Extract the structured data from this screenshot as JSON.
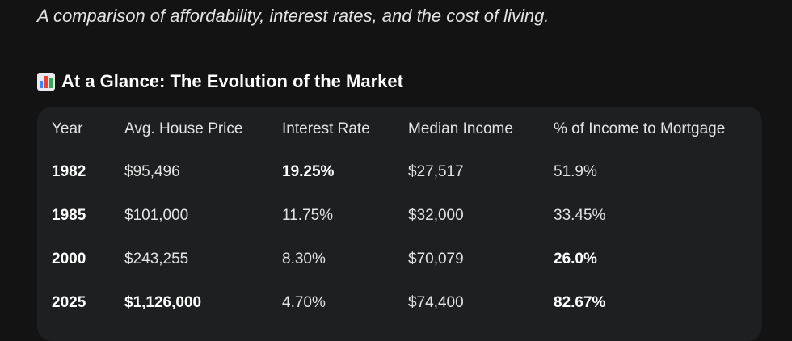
{
  "subtitle": "A comparison of affordability, interest rates, and the cost of living.",
  "heading": {
    "icon": "bar-chart-icon",
    "text": "At a Glance: The Evolution of the Market"
  },
  "table": {
    "headers": [
      "Year",
      "Avg. House Price",
      "Interest Rate",
      "Median Income",
      "% of Income to Mortgage"
    ],
    "rows": [
      [
        "1982",
        "$95,496",
        "19.25%",
        "$27,517",
        "51.9%"
      ],
      [
        "1985",
        "$101,000",
        "11.75%",
        "$32,000",
        "33.45%"
      ],
      [
        "2000",
        "$243,255",
        "8.30%",
        "$70,079",
        "26.0%"
      ],
      [
        "2025",
        "$1,126,000",
        "4.70%",
        "$74,400",
        "82.67%"
      ]
    ]
  },
  "colors": {
    "background": "#131314",
    "card": "#1e1f20",
    "text": "#e3e3e3"
  }
}
